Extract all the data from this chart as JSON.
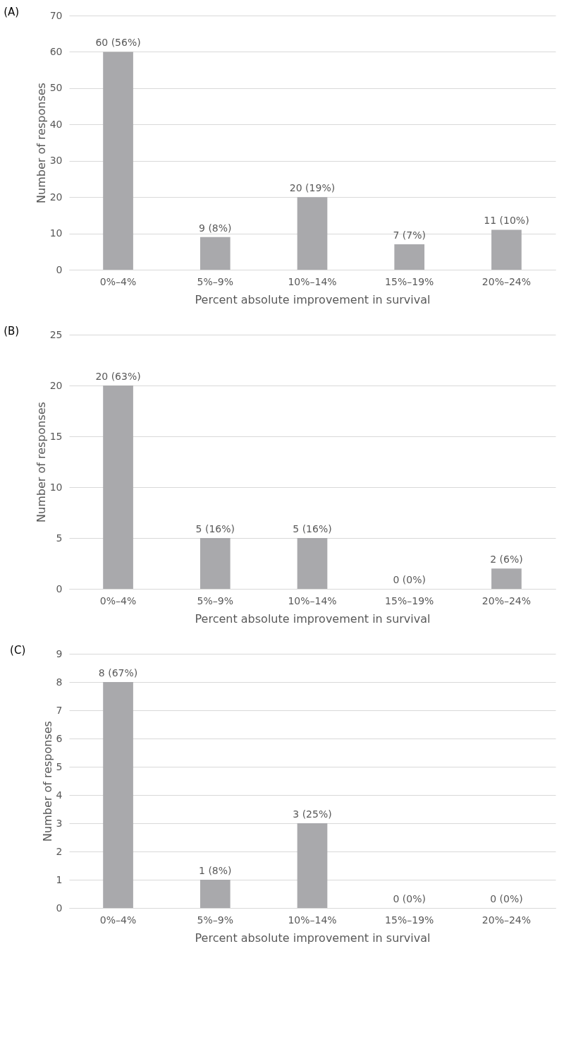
{
  "chart_data": [
    {
      "type": "bar",
      "title": "(A)",
      "xlabel": "Percent absolute improvement in survival",
      "ylabel": "Number of responses",
      "categories": [
        "0%–4%",
        "5%–9%",
        "10%–14%",
        "15%–19%",
        "20%–24%"
      ],
      "values": [
        60,
        9,
        20,
        7,
        11
      ],
      "value_labels": [
        "60 (56%)",
        "9 (8%)",
        "20 (19%)",
        "7 (7%)",
        "11 (10%)"
      ],
      "color": "#a9a9ac",
      "ylim": [
        0,
        70
      ],
      "yticks": [
        0,
        10,
        20,
        30,
        40,
        50,
        60,
        70
      ],
      "grid": "y"
    },
    {
      "type": "bar",
      "title": "(B)",
      "xlabel": "Percent absolute improvement in survival",
      "ylabel": "Number of responses",
      "categories": [
        "0%–4%",
        "5%–9%",
        "10%–14%",
        "15%–19%",
        "20%–24%"
      ],
      "values": [
        20,
        5,
        5,
        0,
        2
      ],
      "value_labels": [
        "20 (63%)",
        "5 (16%)",
        "5 (16%)",
        "0 (0%)",
        "2 (6%)"
      ],
      "color": "#a9a9ac",
      "ylim": [
        0,
        25
      ],
      "yticks": [
        0,
        5,
        10,
        15,
        20,
        25
      ],
      "grid": "y"
    },
    {
      "type": "bar",
      "title": "(C)",
      "xlabel": "Percent absolute improvement in survival",
      "ylabel": "Number of responses",
      "categories": [
        "0%–4%",
        "5%–9%",
        "10%–14%",
        "15%–19%",
        "20%–24%"
      ],
      "values": [
        8,
        1,
        3,
        0,
        0
      ],
      "value_labels": [
        "8 (67%)",
        "1 (8%)",
        "3 (25%)",
        "0 (0%)",
        "0 (0%)"
      ],
      "color": "#a9a9ac",
      "ylim": [
        0,
        9
      ],
      "yticks": [
        0,
        1,
        2,
        3,
        4,
        5,
        6,
        7,
        8,
        9
      ],
      "grid": "y"
    }
  ]
}
